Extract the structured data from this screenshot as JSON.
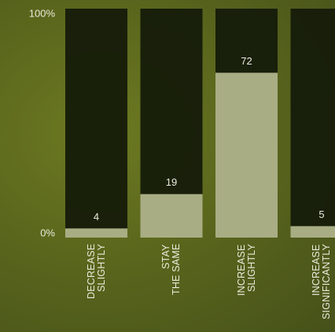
{
  "chart_data": {
    "type": "bar",
    "categories": [
      "DECREASE\nSLIGHTLY",
      "STAY\nTHE SAME",
      "INCREASE\nSLIGHTLY",
      "INCREASE\nSIGNIFICANTLY"
    ],
    "values": [
      4,
      19,
      72,
      5
    ],
    "color": "#a9ad84",
    "ylim": [
      0,
      100
    ],
    "yticks": [
      {
        "value": 0,
        "label": "0%"
      },
      {
        "value": 100,
        "label": "100%"
      }
    ]
  }
}
